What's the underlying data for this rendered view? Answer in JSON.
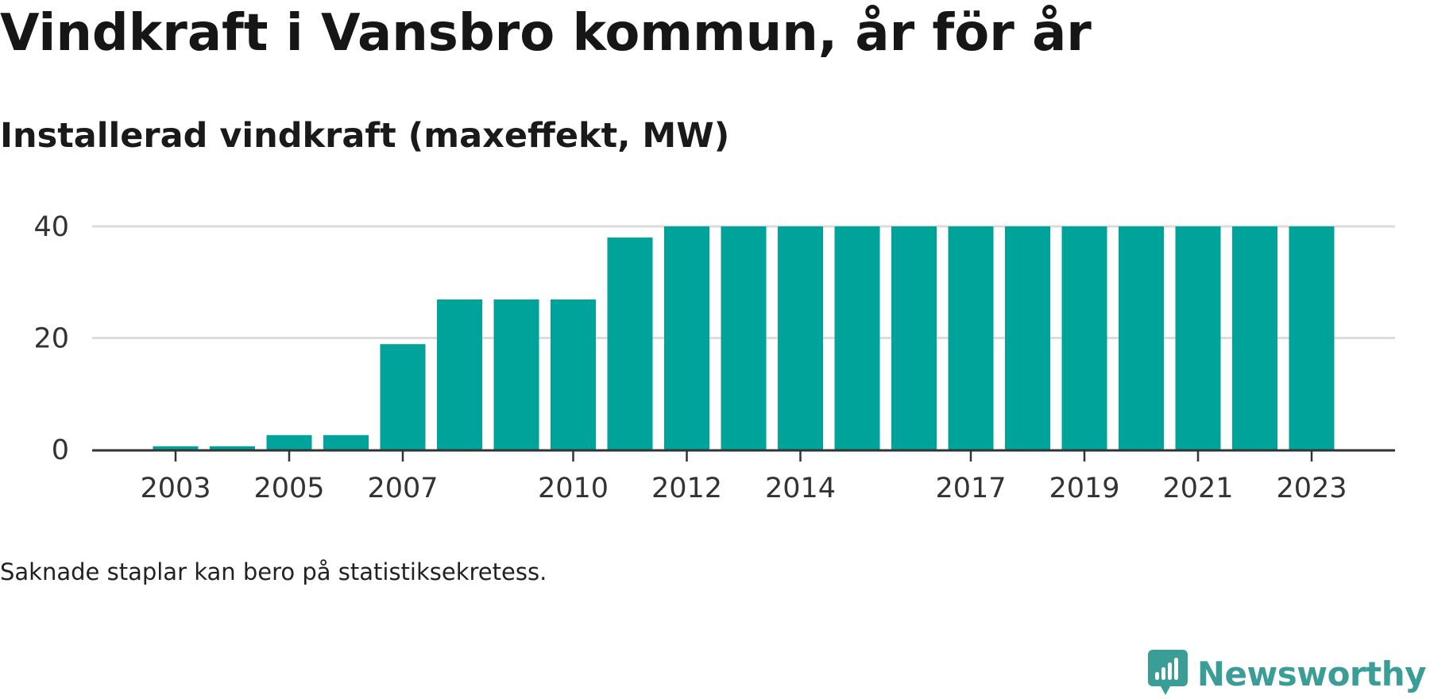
{
  "title": "Vindkraft i Vansbro kommun, år för år",
  "subtitle": "Installerad vindkraft (maxeffekt, MW)",
  "footnote": "Saknade staplar kan bero på statistiksekretess.",
  "brand": {
    "name": "Newsworthy",
    "logo_icon": "bar-chart-speech-bubble-icon",
    "color": "#3a9d96"
  },
  "chart_data": {
    "type": "bar",
    "categories": [
      "2003",
      "2004",
      "2005",
      "2006",
      "2007",
      "2008",
      "2009",
      "2010",
      "2011",
      "2012",
      "2013",
      "2014",
      "2015",
      "2016",
      "2017",
      "2018",
      "2019",
      "2020",
      "2021",
      "2022",
      "2023"
    ],
    "values": [
      0.6,
      0.6,
      2.6,
      2.6,
      18.9,
      26.9,
      26.9,
      26.9,
      38,
      40,
      40,
      40,
      40,
      40,
      40,
      40,
      40,
      40,
      40,
      40,
      40
    ],
    "x_tick_labels": [
      "2003",
      "2005",
      "2007",
      "2010",
      "2012",
      "2014",
      "2017",
      "2019",
      "2021",
      "2023"
    ],
    "y_ticks": [
      0,
      20,
      40
    ],
    "ylim": [
      0,
      40
    ],
    "grid": true,
    "bar_color": "#00a39a",
    "xlabel": "",
    "ylabel": ""
  }
}
